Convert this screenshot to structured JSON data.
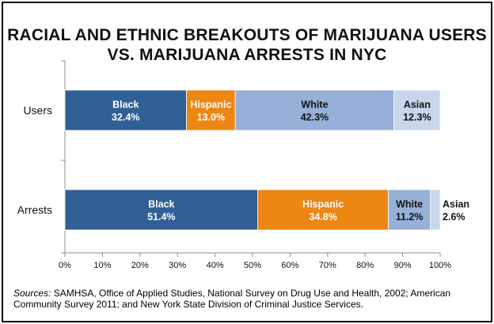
{
  "title": {
    "line1": "RACIAL AND ETHNIC BREAKOUTS OF MARIJUANA USERS",
    "line2": "VS. MARIJUANA ARRESTS IN NYC"
  },
  "sources": {
    "lead": "Sources:",
    "text": " SAMHSA, Office of Applied Studies, National Survey on Drug Use and Health, 2002; American Community Survey 2011; and New York State Division of Criminal Justice Services."
  },
  "chart_data": {
    "type": "bar",
    "orientation": "horizontal",
    "stacked": true,
    "categories": [
      "Users",
      "Arrests"
    ],
    "series": [
      {
        "name": "Black",
        "values": [
          32.4,
          51.4
        ],
        "labels": [
          "32.4%",
          "51.4%"
        ],
        "color": "#2f5f95",
        "text_color": "#ffffff"
      },
      {
        "name": "Hispanic",
        "values": [
          13.0,
          34.8
        ],
        "labels": [
          "13.0%",
          "34.8%"
        ],
        "color": "#ed8613",
        "text_color": "#ffffff"
      },
      {
        "name": "White",
        "values": [
          42.3,
          11.2
        ],
        "labels": [
          "42.3%",
          "11.2%"
        ],
        "color": "#96b0d8",
        "text_color": "#111111"
      },
      {
        "name": "Asian",
        "values": [
          12.3,
          2.6
        ],
        "labels": [
          "12.3%",
          "2.6%"
        ],
        "color": "#c8d5ea",
        "text_color": "#111111"
      }
    ],
    "xlim": [
      0,
      100
    ],
    "x_ticks": [
      "0%",
      "10%",
      "20%",
      "30%",
      "40%",
      "50%",
      "60%",
      "70%",
      "80%",
      "90%",
      "100%"
    ],
    "grid": false
  }
}
